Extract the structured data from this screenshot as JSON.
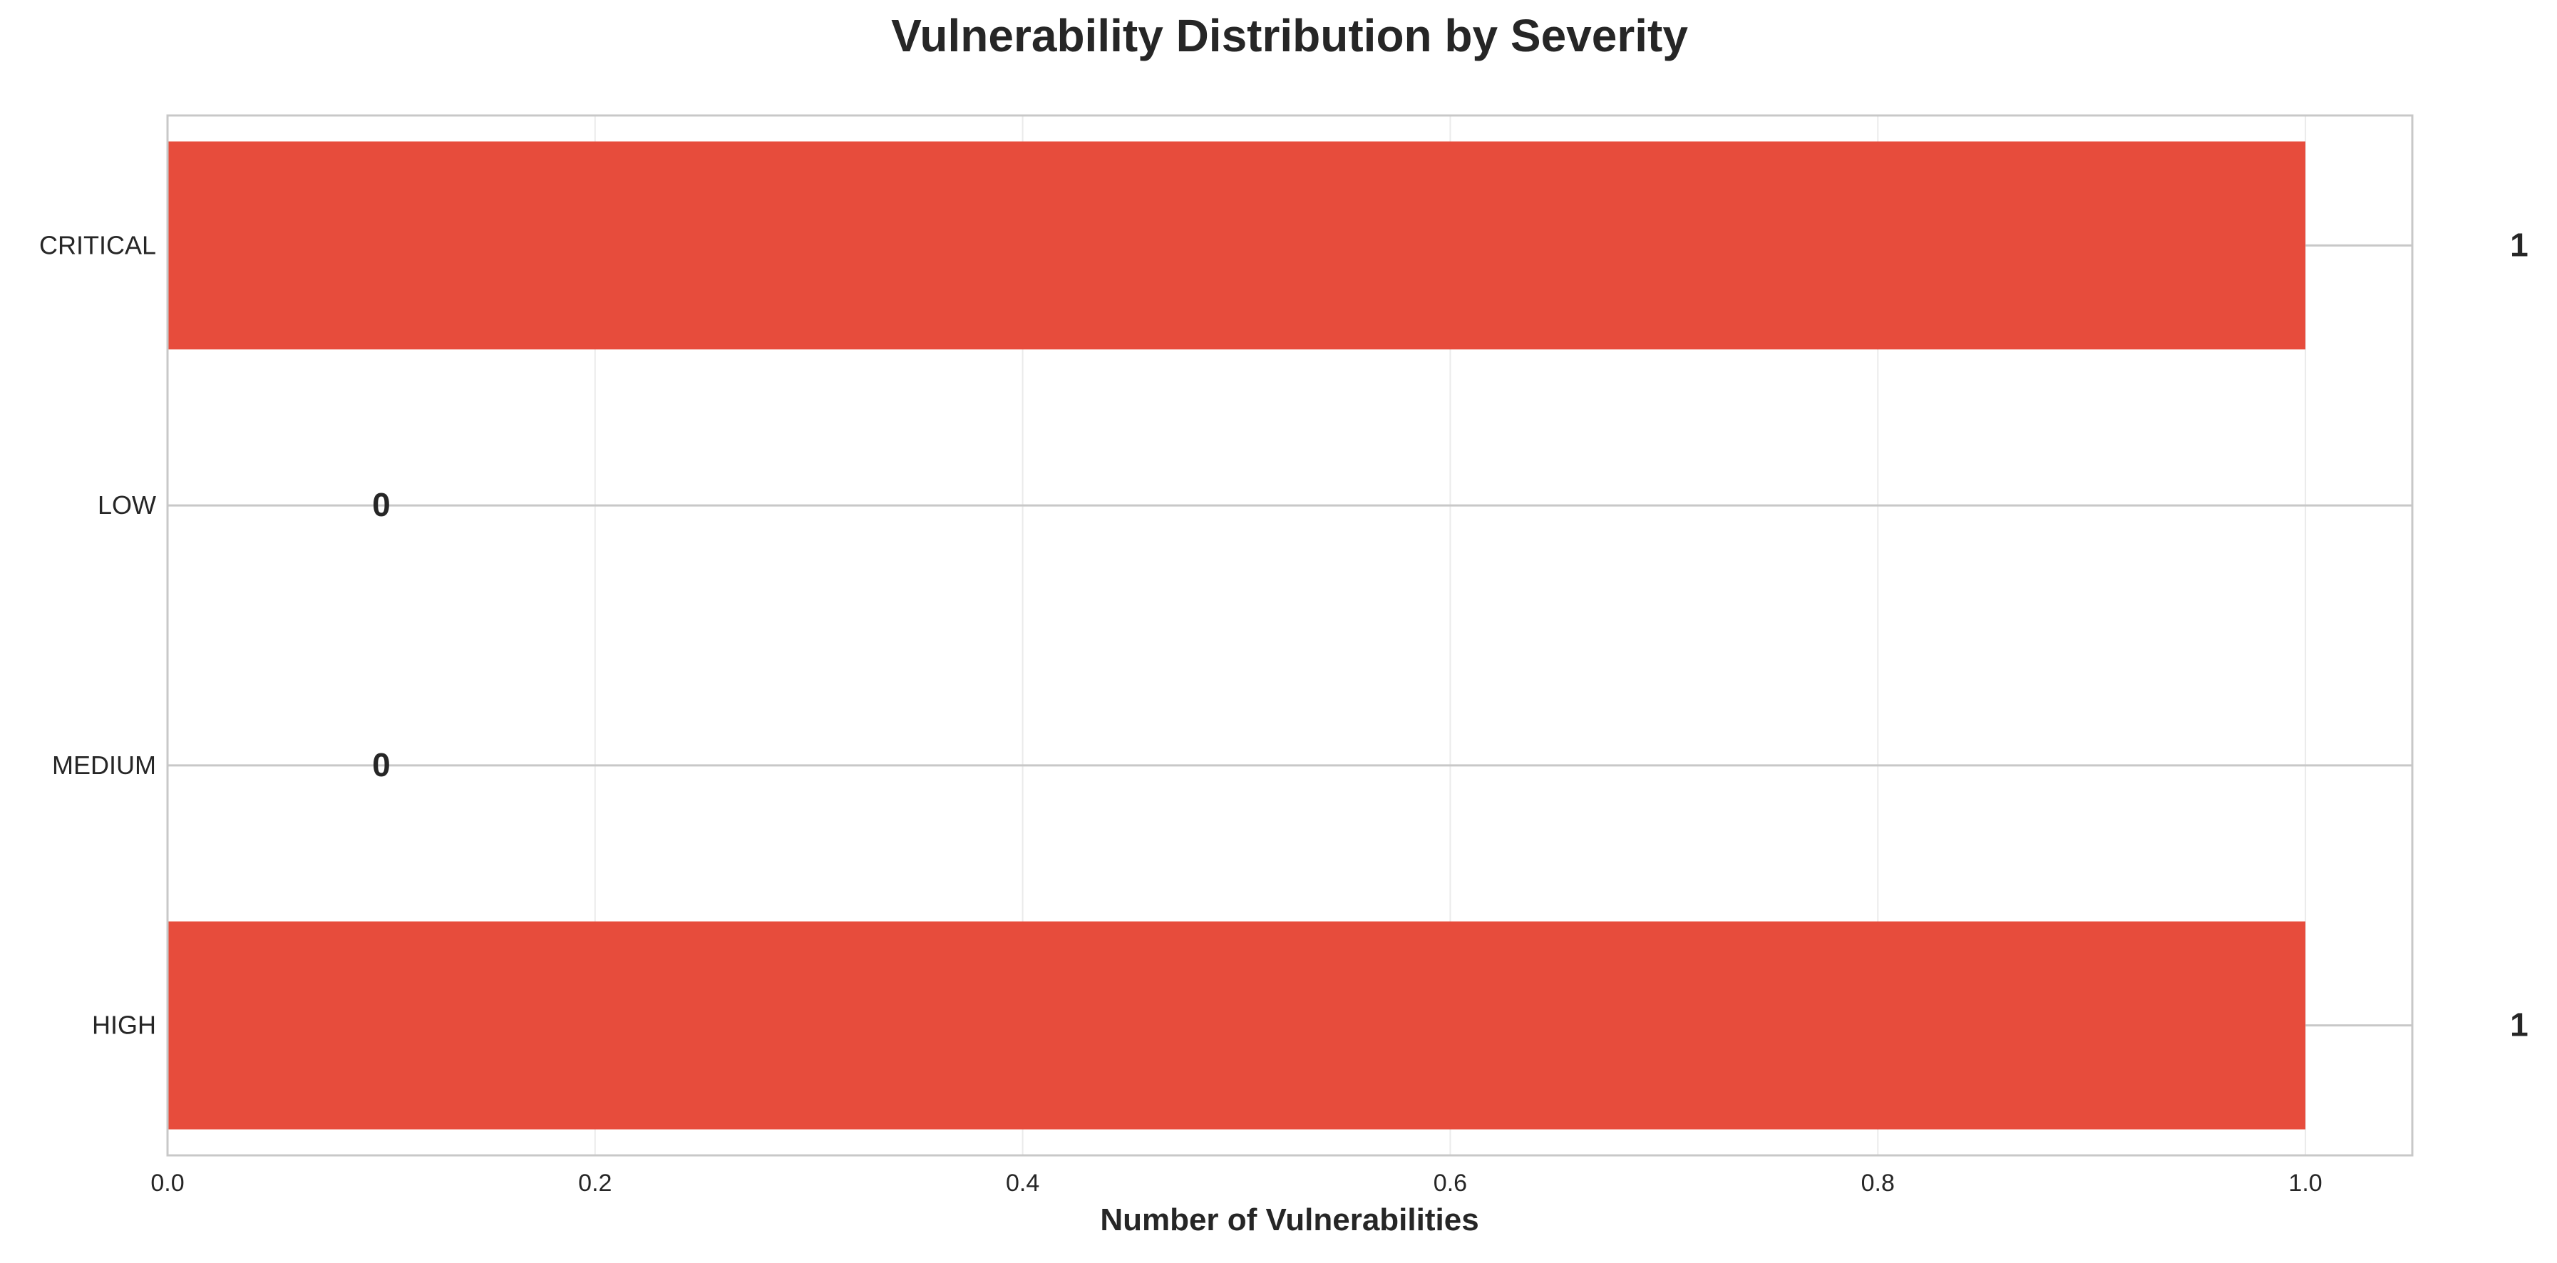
{
  "chart_data": {
    "type": "bar",
    "orientation": "horizontal",
    "title": "Vulnerability Distribution by Severity",
    "xlabel": "Number of Vulnerabilities",
    "ylabel": "",
    "categories": [
      "CRITICAL",
      "LOW",
      "MEDIUM",
      "HIGH"
    ],
    "values": [
      1,
      0,
      0,
      1
    ],
    "data_labels": [
      "1",
      "0",
      "0",
      "1"
    ],
    "xlim": [
      0,
      1.05
    ],
    "xticks": [
      0.0,
      0.2,
      0.4,
      0.6,
      0.8,
      1.0
    ],
    "xtick_labels": [
      "0.0",
      "0.2",
      "0.4",
      "0.6",
      "0.8",
      "1.0"
    ],
    "grid": true,
    "legend": "none",
    "bar_color": "#e74c3c",
    "grid_color": "#ebebeb",
    "category_line_color": "#c8c8c8",
    "frame_color": "#c8c8c8",
    "text_color": "#262626"
  }
}
